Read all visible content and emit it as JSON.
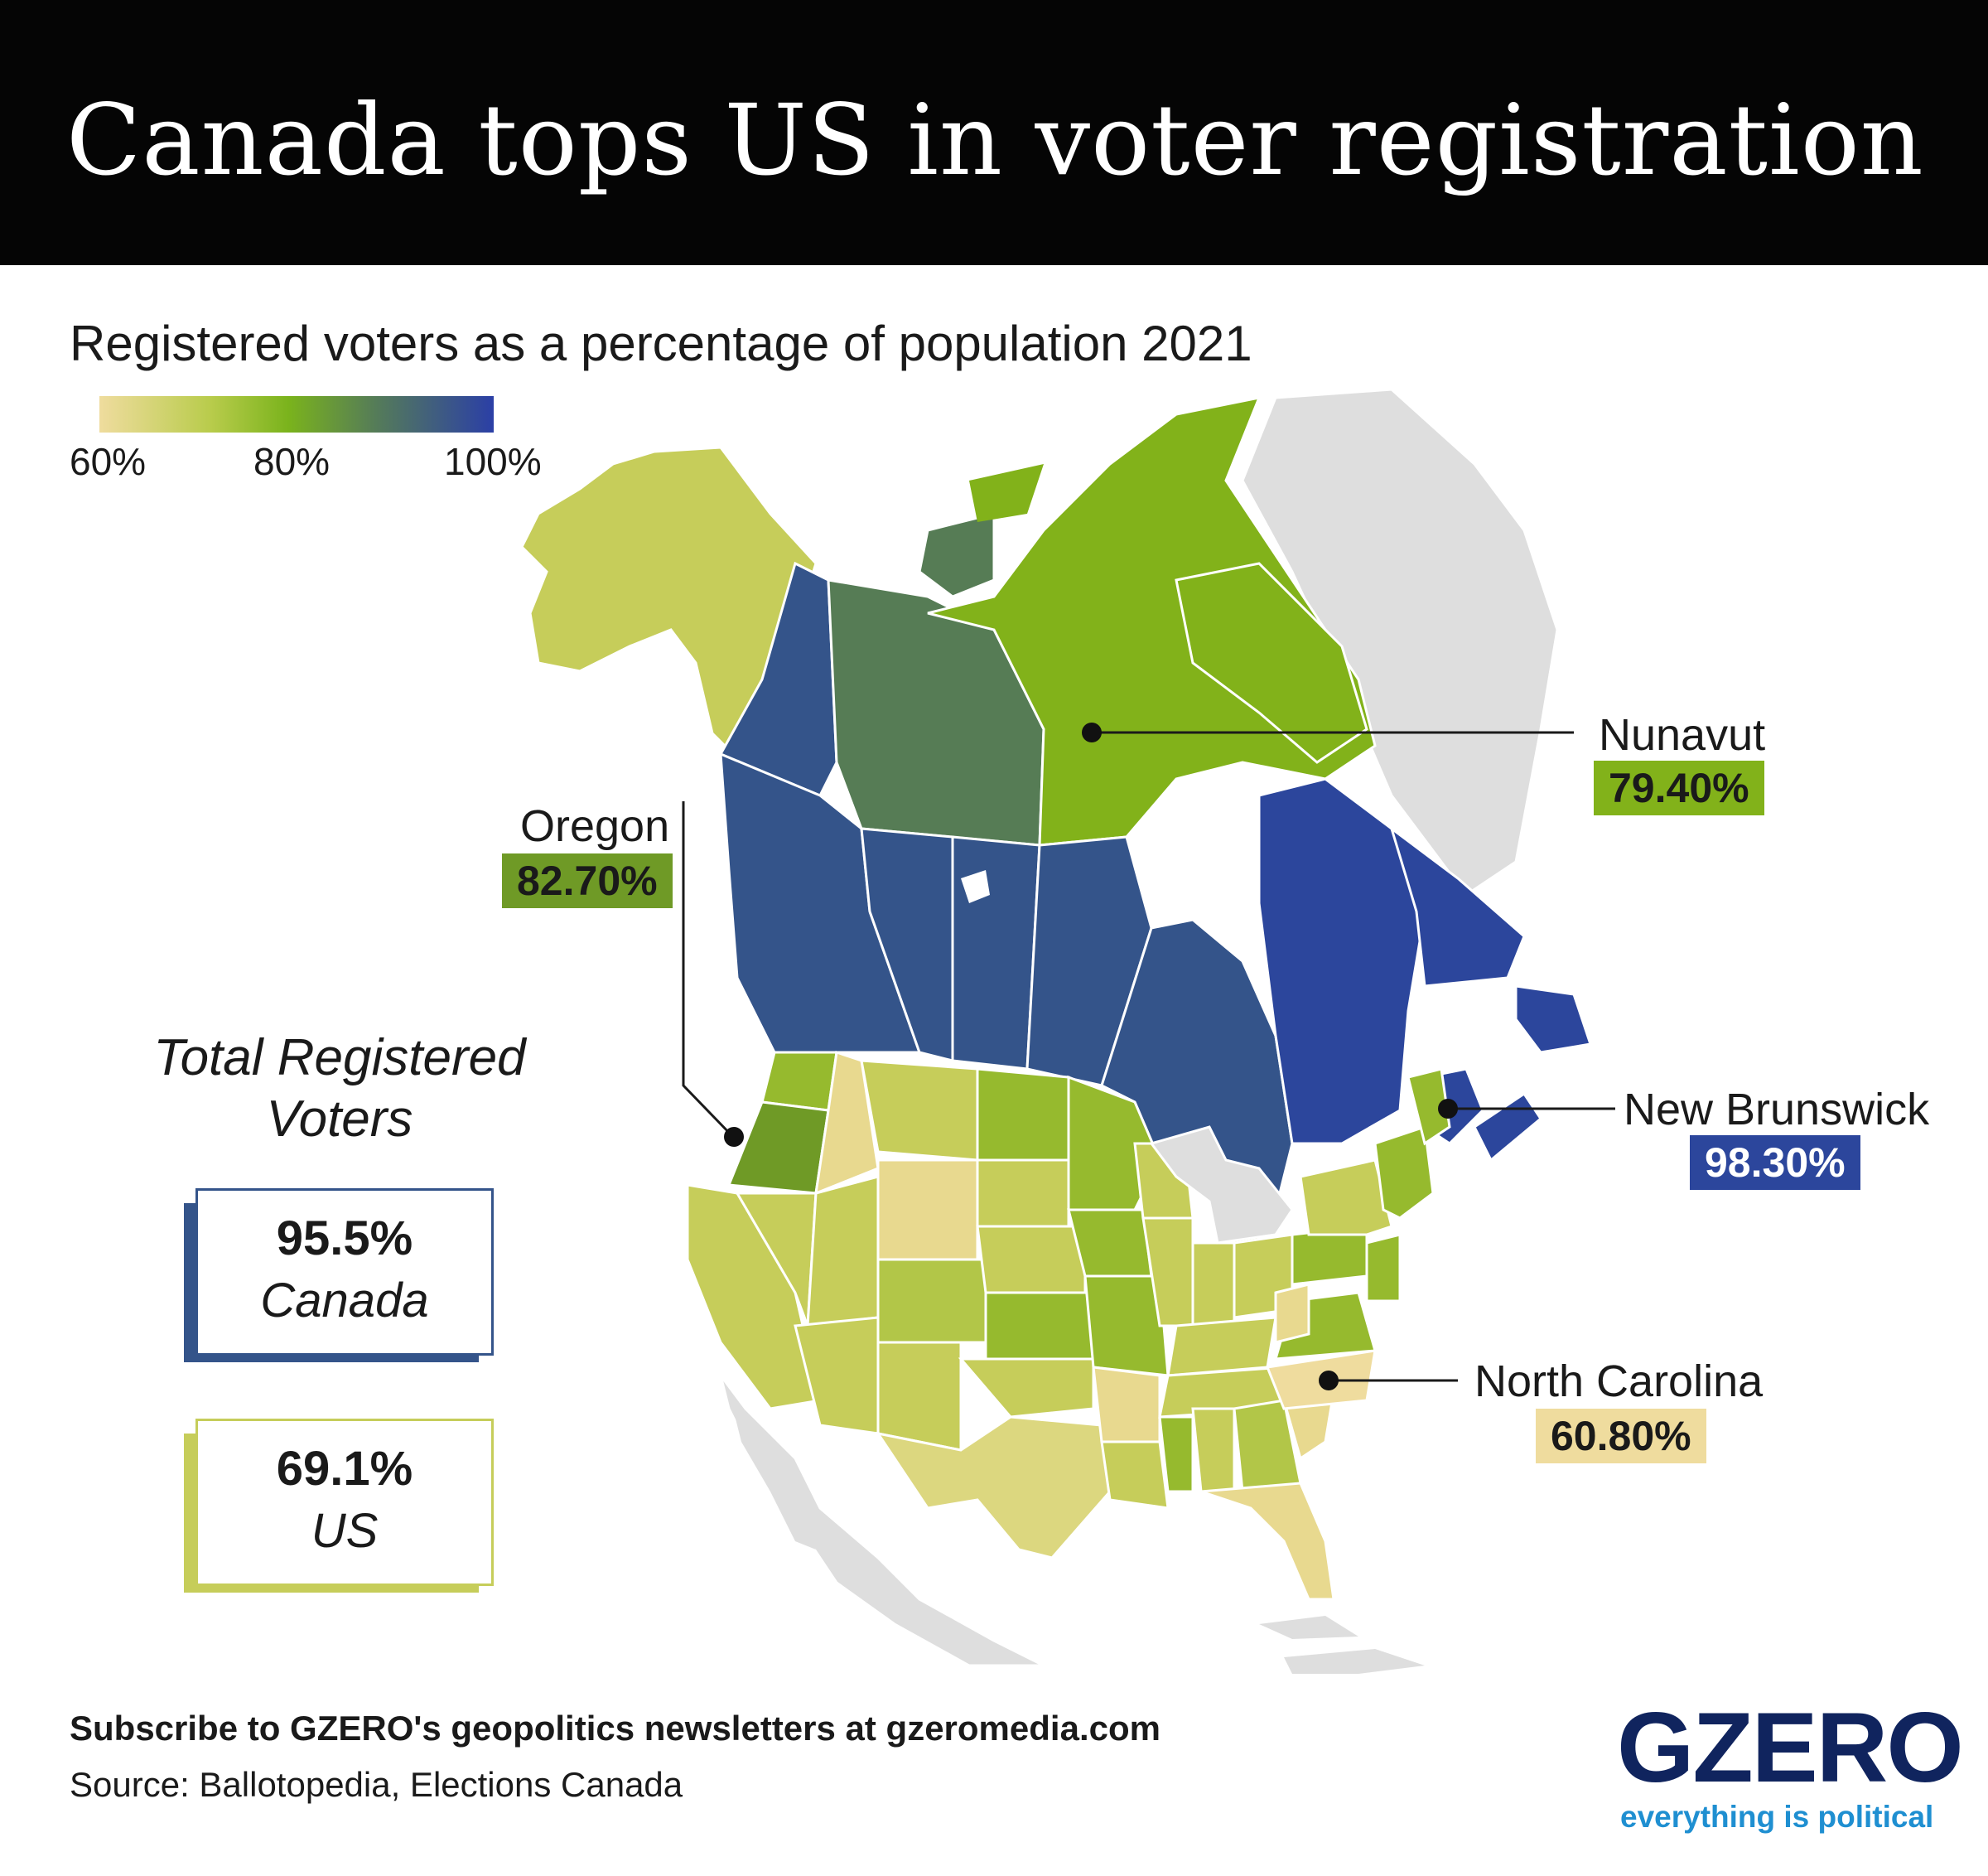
{
  "title": "Canada tops US in voter registration",
  "subtitle": "Registered voters as a percentage of population 2021",
  "legend": {
    "ticks": [
      "60%",
      "80%",
      "100%"
    ],
    "colors": [
      "#efdc9e",
      "#b9cc4c",
      "#7ab31c",
      "#557c58",
      "#2b3fa6"
    ]
  },
  "map": {
    "colors": {
      "us_low": "#e8d98f",
      "us_mid": "#c6cd5a",
      "us_high": "#96ba2e",
      "canada_blue": "#34548a",
      "canada_teal": "#567c55",
      "nunavut": "#82b21a",
      "quebec_atlantic": "#2c469c",
      "other_land": "#dedede",
      "water": "#ffffff"
    }
  },
  "callouts": {
    "nunavut": {
      "label": "Nunavut",
      "value": "79.40%",
      "color": "#82b21a"
    },
    "oregon": {
      "label": "Oregon",
      "value": "82.70%",
      "color": "#6f9a26"
    },
    "new_brunswick": {
      "label": "New Brunswick",
      "value": "98.30%",
      "color": "#2c469c"
    },
    "north_carolina": {
      "label": "North Carolina",
      "value": "60.80%",
      "color": "#efdc9e"
    }
  },
  "totals": {
    "heading": "Total Registered Voters",
    "canada": {
      "value": "95.5%",
      "label": "Canada",
      "color": "#34548a"
    },
    "us": {
      "value": "69.1%",
      "label": "US",
      "color": "#c6cd5a"
    }
  },
  "footer": {
    "subscribe": "Subscribe to GZERO's geopolitics newsletters at gzeromedia.com",
    "source": "Source: Ballotopedia, Elections Canada"
  },
  "brand": {
    "name": "GZERO",
    "tagline": "everything is political"
  }
}
